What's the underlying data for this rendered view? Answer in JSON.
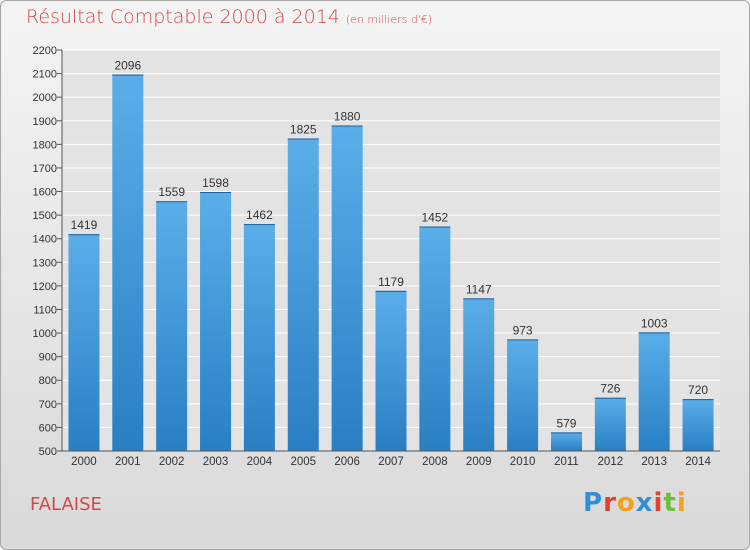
{
  "header": {
    "title": "Résultat Comptable 2000 à 2014",
    "subtitle": "(en milliers d'€)"
  },
  "footer": {
    "location": "FALAISE",
    "logo": "Proxiti"
  },
  "colors": {
    "title": "#d14a4a",
    "bar_top": "#5aaee8",
    "bar_bottom": "#2a7fc4",
    "plot_bg": "#e3e3e3",
    "grid": "#ffffff"
  },
  "chart_data": {
    "type": "bar",
    "title": "Résultat Comptable 2000 à 2014",
    "subtitle": "(en milliers d'€)",
    "categories": [
      "2000",
      "2001",
      "2002",
      "2003",
      "2004",
      "2005",
      "2006",
      "2007",
      "2008",
      "2009",
      "2010",
      "2011",
      "2012",
      "2013",
      "2014"
    ],
    "values": [
      1419,
      2096,
      1559,
      1598,
      1462,
      1825,
      1880,
      1179,
      1452,
      1147,
      973,
      579,
      726,
      1003,
      720
    ],
    "ylim": [
      500,
      2200
    ],
    "yticks": [
      500,
      600,
      700,
      800,
      900,
      1000,
      1100,
      1200,
      1300,
      1400,
      1500,
      1600,
      1700,
      1800,
      1900,
      2000,
      2100,
      2200
    ],
    "grid": true,
    "data_labels": true
  }
}
